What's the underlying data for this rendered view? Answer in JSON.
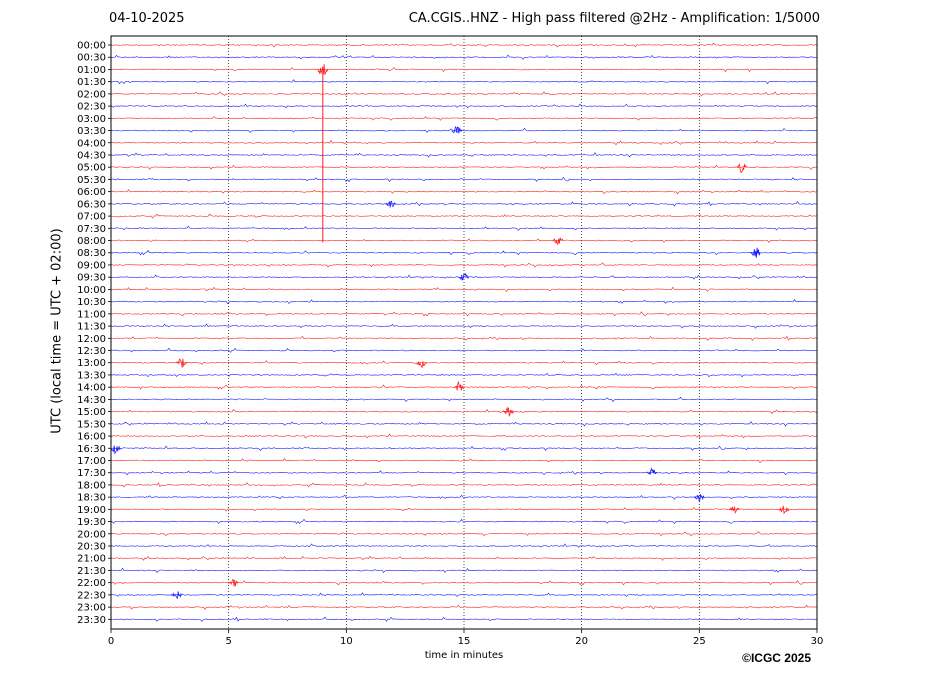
{
  "header": {
    "date": "04-10-2025",
    "title": "CA.CGIS..HNZ - High pass filtered @2Hz - Amplification: 1/5000"
  },
  "footer": {
    "copyright": "©ICGC 2025"
  },
  "colors": {
    "red_trace": "#ff2020",
    "blue_trace": "#1a1aff",
    "grid": "#000000",
    "frame": "#000000"
  },
  "chart_data": {
    "type": "line",
    "title": "CA.CGIS..HNZ - High pass filtered @2Hz - Amplification: 1/5000",
    "xlabel": "time in minutes",
    "ylabel": "UTC (local time = UTC + 02:00)",
    "xlim": [
      0,
      30
    ],
    "x_ticks": [
      0,
      5,
      10,
      15,
      20,
      25,
      30
    ],
    "x_tick_labels": [
      "0",
      "5",
      "10",
      "15",
      "20",
      "25",
      "30"
    ],
    "grid": "dotted vertical lines at 5, 10, 15, 20, 25 minutes",
    "trace_colors": [
      "red",
      "blue"
    ],
    "rows": [
      "00:00",
      "00:30",
      "01:00",
      "01:30",
      "02:00",
      "02:30",
      "03:00",
      "03:30",
      "04:00",
      "04:30",
      "05:00",
      "05:30",
      "06:00",
      "06:30",
      "07:00",
      "07:30",
      "08:00",
      "08:30",
      "09:00",
      "09:30",
      "10:00",
      "10:30",
      "11:00",
      "11:30",
      "12:00",
      "12:30",
      "13:00",
      "13:30",
      "14:00",
      "14:30",
      "15:00",
      "15:30",
      "16:00",
      "16:30",
      "17:00",
      "17:30",
      "18:00",
      "18:30",
      "19:00",
      "19:30",
      "20:00",
      "20:30",
      "21:00",
      "21:30",
      "22:00",
      "22:30",
      "23:00",
      "23:30"
    ],
    "events": [
      {
        "row": "01:00",
        "minute": 9.0,
        "amplitude": 1.0
      },
      {
        "row": "03:30",
        "minute": 14.7,
        "amplitude": 0.6
      },
      {
        "row": "05:00",
        "minute": 26.8,
        "amplitude": 0.5
      },
      {
        "row": "06:30",
        "minute": 11.9,
        "amplitude": 0.4
      },
      {
        "row": "08:00",
        "minute": 19.0,
        "amplitude": 0.45
      },
      {
        "row": "08:30",
        "minute": 27.4,
        "amplitude": 0.6
      },
      {
        "row": "09:30",
        "minute": 15.0,
        "amplitude": 0.4
      },
      {
        "row": "13:00",
        "minute": 3.0,
        "amplitude": 0.5
      },
      {
        "row": "13:00",
        "minute": 13.2,
        "amplitude": 0.45
      },
      {
        "row": "14:00",
        "minute": 14.8,
        "amplitude": 0.55
      },
      {
        "row": "15:00",
        "minute": 16.9,
        "amplitude": 0.45
      },
      {
        "row": "16:30",
        "minute": 0.2,
        "amplitude": 0.5
      },
      {
        "row": "17:30",
        "minute": 23.0,
        "amplitude": 0.4
      },
      {
        "row": "18:30",
        "minute": 25.0,
        "amplitude": 0.4
      },
      {
        "row": "19:00",
        "minute": 28.6,
        "amplitude": 0.45
      },
      {
        "row": "19:00",
        "minute": 26.5,
        "amplitude": 0.4
      },
      {
        "row": "22:00",
        "minute": 5.2,
        "amplitude": 0.45
      },
      {
        "row": "22:30",
        "minute": 2.8,
        "amplitude": 0.4
      }
    ]
  }
}
